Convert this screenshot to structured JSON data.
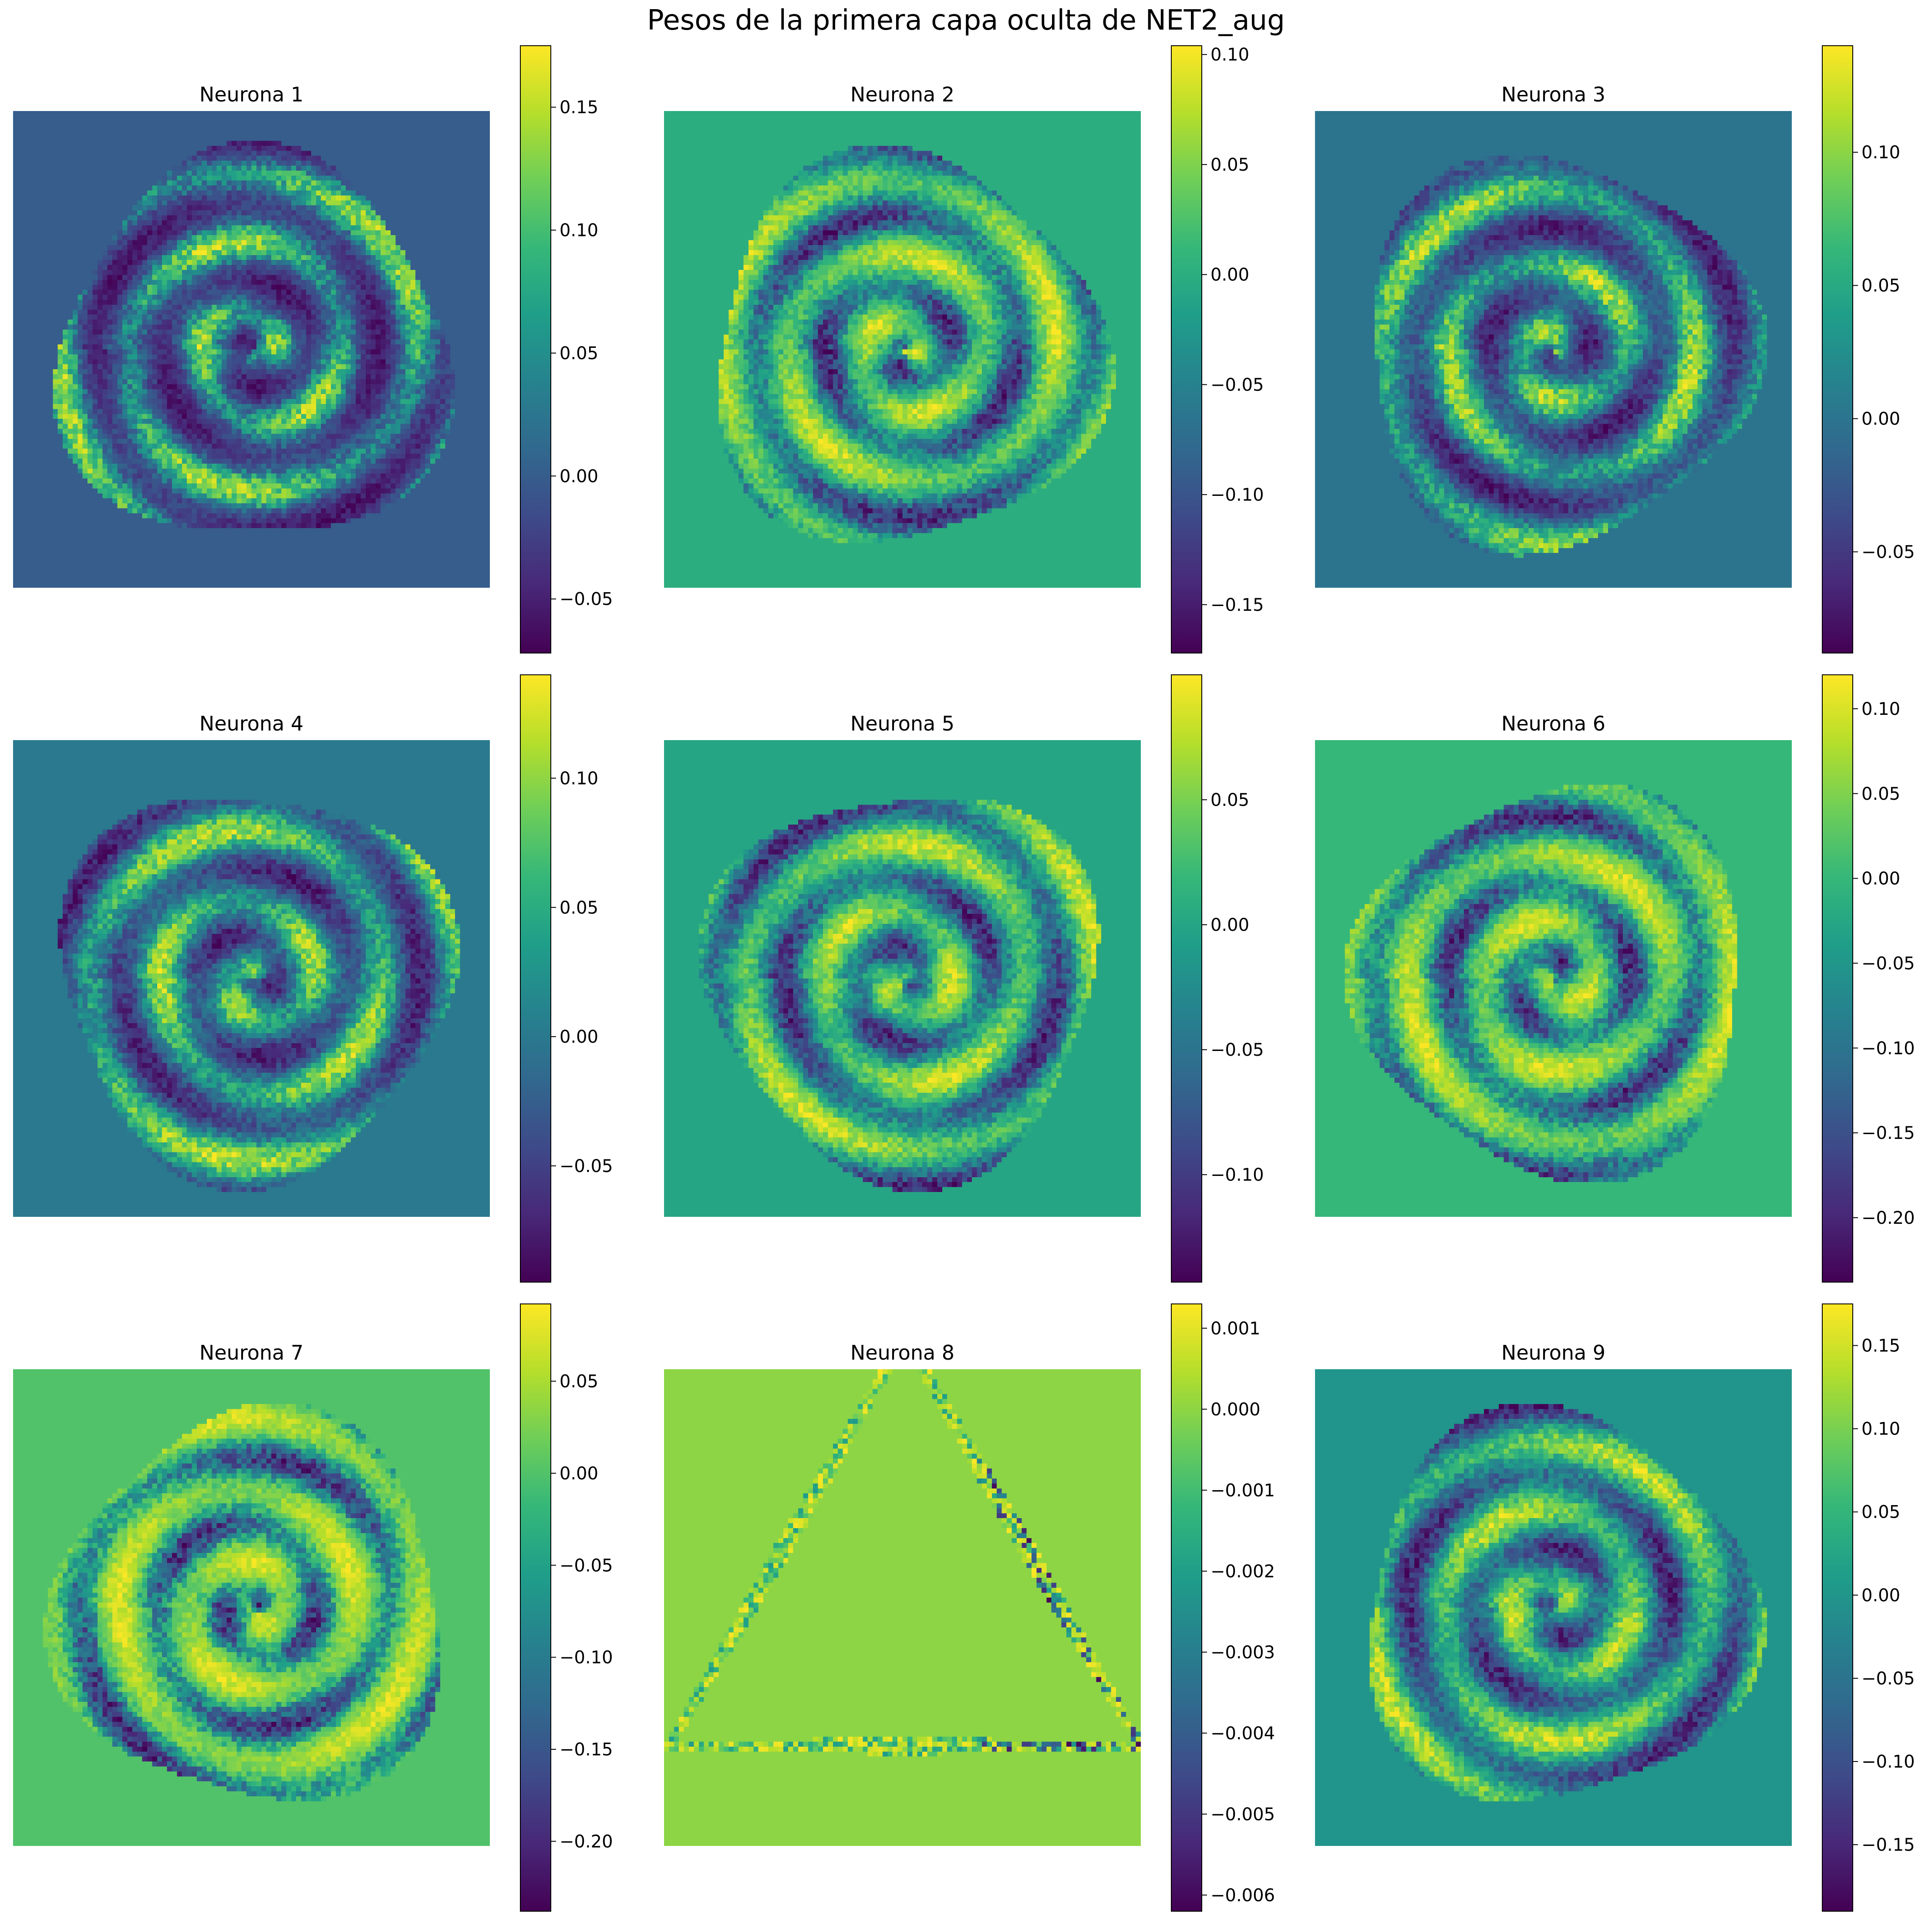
{
  "title": "Pesos de la primera capa oculta de NET2_aug",
  "colormap": {
    "name": "viridis",
    "stops": [
      "#440154",
      "#482878",
      "#3e4a89",
      "#31688e",
      "#26828e",
      "#1f9e89",
      "#35b779",
      "#6ece58",
      "#b5de2b",
      "#fde725"
    ]
  },
  "chart_data": [
    {
      "type": "heatmap",
      "title": "Neurona 1",
      "pattern": "rings",
      "vmin": -0.072,
      "vmax": 0.175,
      "background": 0.0,
      "ticks": [
        -0.05,
        0.0,
        0.05,
        0.1,
        0.15
      ],
      "tick_labels": [
        "−0.05",
        "0.00",
        "0.05",
        "0.10",
        "0.15"
      ]
    },
    {
      "type": "heatmap",
      "title": "Neurona 2",
      "pattern": "rings",
      "vmin": -0.172,
      "vmax": 0.104,
      "background": 0.0,
      "ticks": [
        -0.15,
        -0.1,
        -0.05,
        0.0,
        0.05,
        0.1
      ],
      "tick_labels": [
        "−0.15",
        "−0.10",
        "−0.05",
        "0.00",
        "0.05",
        "0.10"
      ]
    },
    {
      "type": "heatmap",
      "title": "Neurona 3",
      "pattern": "rings",
      "vmin": -0.088,
      "vmax": 0.14,
      "background": 0.0,
      "ticks": [
        -0.05,
        0.0,
        0.05,
        0.1
      ],
      "tick_labels": [
        "−0.05",
        "0.00",
        "0.05",
        "0.10"
      ]
    },
    {
      "type": "heatmap",
      "title": "Neurona 4",
      "pattern": "rings",
      "vmin": -0.095,
      "vmax": 0.14,
      "background": 0.0,
      "ticks": [
        -0.05,
        0.0,
        0.05,
        0.1
      ],
      "tick_labels": [
        "−0.05",
        "0.00",
        "0.05",
        "0.10"
      ]
    },
    {
      "type": "heatmap",
      "title": "Neurona 5",
      "pattern": "rings",
      "vmin": -0.143,
      "vmax": 0.1,
      "background": 0.0,
      "ticks": [
        -0.1,
        -0.05,
        0.0,
        0.05
      ],
      "tick_labels": [
        "−0.10",
        "−0.05",
        "0.00",
        "0.05"
      ]
    },
    {
      "type": "heatmap",
      "title": "Neurona 6",
      "pattern": "rings",
      "vmin": -0.238,
      "vmax": 0.12,
      "background": 0.0,
      "ticks": [
        -0.2,
        -0.15,
        -0.1,
        -0.05,
        0.0,
        0.05,
        0.1
      ],
      "tick_labels": [
        "−0.20",
        "−0.15",
        "−0.10",
        "−0.05",
        "0.00",
        "0.05",
        "0.10"
      ]
    },
    {
      "type": "heatmap",
      "title": "Neurona 7",
      "pattern": "rings",
      "vmin": -0.238,
      "vmax": 0.092,
      "background": 0.0,
      "ticks": [
        -0.2,
        -0.15,
        -0.1,
        -0.05,
        0.0,
        0.05
      ],
      "tick_labels": [
        "−0.20",
        "−0.15",
        "−0.10",
        "−0.05",
        "0.00",
        "0.05"
      ]
    },
    {
      "type": "heatmap",
      "title": "Neurona 8",
      "pattern": "triangle",
      "vmin": -0.0062,
      "vmax": 0.0013,
      "background": 0.0,
      "ticks": [
        -0.006,
        -0.005,
        -0.004,
        -0.003,
        -0.002,
        -0.001,
        0.0,
        0.001
      ],
      "tick_labels": [
        "−0.006",
        "−0.005",
        "−0.004",
        "−0.003",
        "−0.002",
        "−0.001",
        "0.000",
        "0.001"
      ]
    },
    {
      "type": "heatmap",
      "title": "Neurona 9",
      "pattern": "rings",
      "vmin": -0.19,
      "vmax": 0.175,
      "background": 0.0,
      "ticks": [
        -0.15,
        -0.1,
        -0.05,
        0.0,
        0.05,
        0.1,
        0.15
      ],
      "tick_labels": [
        "−0.15",
        "−0.10",
        "−0.05",
        "0.00",
        "0.05",
        "0.10",
        "0.15"
      ]
    }
  ]
}
